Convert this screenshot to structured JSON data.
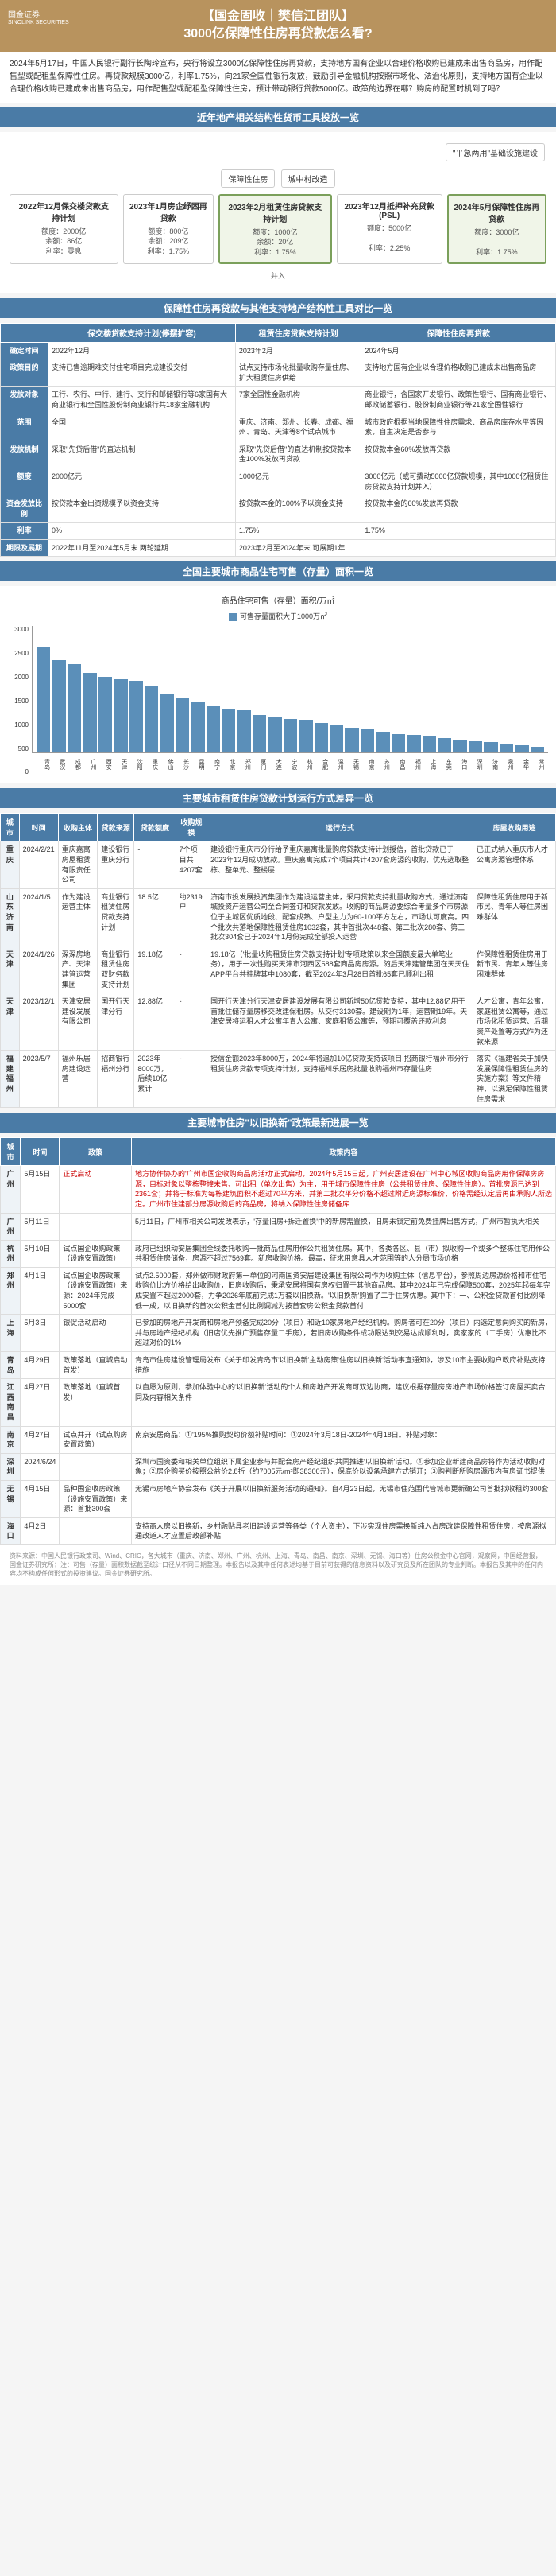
{
  "header": {
    "logo": "国金证券",
    "sublogo": "SINOLINK SECURITIES",
    "title1": "【国金固收｜樊信江团队】",
    "title2": "3000亿保障性住房再贷款怎么看?"
  },
  "intro": "2024年5月17日，中国人民银行副行长陶玲宣布，央行将设立3000亿保障性住房再贷款，支持地方国有企业以合理价格收购已建成未出售商品房，用作配售型或配租型保障性住房。再贷款规模3000亿，利率1.75%，向21家全国性银行发放，鼓励引导金融机构按照市场化、法治化原则，支持地方国有企业以合理价格收购已建成未出售商品房，用作配售型或配租型保障性住房，预计带动银行贷款5000亿。政策的边界在哪？购房的配置时机到了吗？",
  "sec1_title": "近年地产相关结构性货币工具投放一览",
  "diagram": {
    "tags": {
      "t1": "\"平急两用\"基础设施建设",
      "t2": "保障性住房",
      "t3": "城中村改造"
    },
    "nodes": [
      {
        "title": "2022年12月保交楼贷款支持计划",
        "quota": "额度：2000亿",
        "bal": "余额：86亿",
        "rate": "利率：零息"
      },
      {
        "title": "2023年1月房企纾困再贷款",
        "quota": "额度：800亿",
        "bal": "余额：209亿",
        "rate": "利率：1.75%"
      },
      {
        "title": "2023年2月租赁住房贷款支持计划",
        "quota": "额度：1000亿",
        "bal": "余额：20亿",
        "rate": "利率：1.75%",
        "green": true,
        "arrow": "并入"
      },
      {
        "title": "2023年12月抵押补充贷款(PSL)",
        "quota": "额度：5000亿",
        "bal": "",
        "rate": "利率：2.25%"
      },
      {
        "title": "2024年5月保障性住房再贷款",
        "quota": "额度：3000亿",
        "bal": "",
        "rate": "利率：1.75%",
        "green": true
      }
    ]
  },
  "sec2_title": "保障性住房再贷款与其他支持地产结构性工具对比一览",
  "cmp": {
    "cols": [
      "保交楼贷款支持计划(停摆扩容)",
      "租赁住房贷款支持计划",
      "保障性住房再贷款"
    ],
    "rows": [
      {
        "h": "确定时间",
        "c": [
          "2022年12月",
          "2023年2月",
          "2024年5月"
        ]
      },
      {
        "h": "政策目的",
        "c": [
          "支持已售逾期难交付住宅项目完成建设交付",
          "试点支持市场化批量收购存量住房、扩大租赁住房供给",
          "支持地方国有企业以合理价格收购已建成未出售商品房"
        ]
      },
      {
        "h": "发放对象",
        "c": [
          "工行、农行、中行、建行、交行和邮储银行等6家国有大商业银行和全国性股份制商业银行共18家金融机构",
          "7家全国性金融机构",
          "商业银行，含国家开发银行、政策性银行、国有商业银行、邮政储蓄银行、股份制商业银行等21家全国性银行"
        ]
      },
      {
        "h": "范围",
        "c": [
          "全国",
          "重庆、济南、郑州、长春、成都、福州、青岛、天津等8个试点城市",
          "城市政府根据当地保障性住房需求、商品房库存水平等因素，自主决定是否参与"
        ]
      },
      {
        "h": "发放机制",
        "c": [
          "采取\"先贷后借\"的直达机制",
          "采取\"先贷后借\"的直达机制按贷款本金100%发放再贷款",
          "按贷款本金60%发放再贷款"
        ]
      },
      {
        "h": "额度",
        "c": [
          "2000亿元",
          "1000亿元",
          "3000亿元（或可撬动5000亿贷款规模，其中1000亿租赁住房贷款支持计划并入）"
        ]
      },
      {
        "h": "资金发放比例",
        "c": [
          "按贷款本金出资规模予以资金支持",
          "按贷款本金的100%予以资金支持",
          "按贷款本金的60%发放再贷款"
        ]
      },
      {
        "h": "利率",
        "c": [
          "0%",
          "1.75%",
          "1.75%"
        ]
      },
      {
        "h": "期限及展期",
        "c": [
          "2022年11月至2024年5月末 两轮延期",
          "2023年2月至2024年末 可展期1年",
          ""
        ]
      }
    ]
  },
  "sec3_title": "全国主要城市商品住宅可售（存量）面积一览",
  "chart": {
    "title": "商品住宅可售（存量）面积/万㎡",
    "legend": "可售存量面积大于1000万㎡",
    "ymax": 3000,
    "ytickstep": 500,
    "series": [
      {
        "city": "青岛",
        "v": 2500
      },
      {
        "city": "武汉",
        "v": 2200
      },
      {
        "city": "成都",
        "v": 2100
      },
      {
        "city": "广州",
        "v": 1900
      },
      {
        "city": "西安",
        "v": 1800
      },
      {
        "city": "天津",
        "v": 1750
      },
      {
        "city": "沈阳",
        "v": 1700
      },
      {
        "city": "重庆",
        "v": 1600
      },
      {
        "city": "佛山",
        "v": 1400
      },
      {
        "city": "长沙",
        "v": 1300
      },
      {
        "city": "昆明",
        "v": 1200
      },
      {
        "city": "南宁",
        "v": 1100
      },
      {
        "city": "北京",
        "v": 1050
      },
      {
        "city": "郑州",
        "v": 1000
      },
      {
        "city": "厦门",
        "v": 900
      },
      {
        "city": "大连",
        "v": 850
      },
      {
        "city": "宁波",
        "v": 800
      },
      {
        "city": "杭州",
        "v": 780
      },
      {
        "city": "合肥",
        "v": 700
      },
      {
        "city": "温州",
        "v": 650
      },
      {
        "city": "无锡",
        "v": 600
      },
      {
        "city": "南京",
        "v": 550
      },
      {
        "city": "苏州",
        "v": 500
      },
      {
        "city": "南昌",
        "v": 450
      },
      {
        "city": "福州",
        "v": 420
      },
      {
        "city": "上海",
        "v": 400
      },
      {
        "city": "东莞",
        "v": 350
      },
      {
        "city": "海口",
        "v": 300
      },
      {
        "city": "深圳",
        "v": 280
      },
      {
        "city": "济南",
        "v": 250
      },
      {
        "city": "泉州",
        "v": 200
      },
      {
        "city": "金华",
        "v": 180
      },
      {
        "city": "常州",
        "v": 150
      }
    ]
  },
  "sec4_title": "主要城市租赁住房贷款计划运行方式差异一览",
  "t4": {
    "cols": [
      "城市",
      "时间",
      "收购主体",
      "贷款来源",
      "贷款额度",
      "收购规模",
      "运行方式",
      "房屋收购用途"
    ],
    "rows": [
      {
        "city": "重庆",
        "date": "2024/2/21",
        "buyer": "重庆嘉寓房屋租赁有限责任公司",
        "loan": "建设银行重庆分行",
        "amt": "-",
        "scale": "7个项目共4207套",
        "run": "建设银行重庆市分行给予重庆嘉寓批量购房贷款支持计划授信，首批贷款已于2023年12月成功放款。重庆嘉寓完成7个项目共计4207套房源的收购，优先选取整栋、整单元、整楼层",
        "use": "已正式纳入重庆市人才公寓房源管理体系"
      },
      {
        "city": "山东济南",
        "date": "2024/1/5",
        "buyer": "作为建设运营主体",
        "loan": "商业银行租赁住房贷款支持计划",
        "amt": "18.5亿",
        "scale": "约2319户",
        "run": "济南市投发展投资集团作为建设运营主体，采用贷款支持批量收购方式，通过济南城投资产运营公司至合同签订和贷款发放。收购的商品房源要综合考量多个市房源位于主城区优质地段、配套成熟、户型主力为60-100平方左右，市场认可度高。四个批次共落地保障性租赁住房1032套，其中首批次448套、第二批次280套、第三批次304套已于2024年1月份完成全部投入运营",
        "use": "保障性租赁住房用于新市民、青年人等住房困难群体"
      },
      {
        "city": "天津",
        "date": "2024/1/26",
        "buyer": "深深房地产、天津建管运营集团",
        "loan": "商业银行租赁住房双财务款支持计划",
        "amt": "19.18亿",
        "scale": "-",
        "run": "19.18亿（'批量收购租赁住房贷款支持计划'专项政策以来全国额度最大单笔业务），用于一次性购买天津市河西区588套商品房房源。随后天津建管集团在天天住APP平台共挂牌其中1080套，截至2024年3月28日首批65套已顺利出租",
        "use": "作保障性租赁住房用于新市民、青年人等住房困难群体"
      },
      {
        "city": "天津",
        "date": "2023/12/1",
        "buyer": "天津安居建设发展有限公司",
        "loan": "国开行天津分行",
        "amt": "12.88亿",
        "scale": "-",
        "run": "国开行天津分行天津安居建设发展有限公司新增50亿贷款支持，其中12.88亿用于首批住储存量房移交改建保租房。从交付3130套。建设期为1年，运营期19年。天津安居将运租人才公寓年青人公寓、家庭租赁公寓等，预期可覆盖还款利息",
        "use": "人才公寓，青年公寓，家庭租赁公寓等，通过市场化租赁运营、后期资产处置等方式作为还款来源"
      },
      {
        "city": "福建福州",
        "date": "2023/5/7",
        "buyer": "福州乐居房建设运营",
        "loan": "招商银行福州分行",
        "amt": "2023年8000万，后续10亿累计",
        "scale": "-",
        "run": "授信金额2023年8000万，2024年将追加10亿贷款支持该项目,招商银行福州市分行租赁住房贷款专项支持计划，支持福州乐居房批量收购福州市存量住房",
        "use": "落实《福建省关于加快发展保障性租赁住房的实施方案》等文件精神，以满足保障性租赁住房需求"
      }
    ]
  },
  "sec5_title": "主要城市住房\"以旧换新\"政策最新进展一览",
  "t5": {
    "cols": [
      "城市",
      "时间",
      "政策",
      "政策内容"
    ],
    "rows": [
      {
        "city": "广州",
        "date": "5月15日",
        "plc": "正式启动",
        "txt": "地方协作协办的'广州市国企收购商品房活动'正式启动，2024年5月15日起，广州安居建设在广州中心城区收购商品房用作保障房房源，目标对象以整栋整幢未售、可出租（单次出售）为主，用于城市保障性住房（公共租赁住房、保障性住房）。首批房源已达到2361套；并将于标准为每栋建筑面积不超过70平方米，并第二批次平分价格不超过附近房源标准价，价格需经认定后再由承购人所选定。广州市住建部分房源收购后的商品房，将纳入保障性住房储备库",
        "hl": "red"
      },
      {
        "city": "广州",
        "date": "5月11日",
        "plc": "",
        "txt": "5月11日，广州市相关公司发改表示，'存量旧房+拆迁置换'中的新房需置换，旧房未锁定前免费挂牌出售方式，广州市暂执大相关"
      },
      {
        "city": "杭州",
        "date": "5月10日",
        "plc": "试点国企收购政策（设施安置政策）",
        "txt": "政府已组织动安居集团全线委托收购一批商品住房用作公共租赁住房。其中，各类各区、县（市）拟收购一个或多个整栋住宅用作公共租赁住房储备，房源不超过7569套。新房收购价格。最高，征求用意具人才范围等的人分局市场价格"
      },
      {
        "city": "郑州",
        "date": "4月1日",
        "plc": "试点国企收房政策（设施安置政策）来源：2024年完成5000套",
        "txt": "试点2.5000套，郑州做市财政府第一单位的河南国资安居建设集团有限公司作为收购主体（信息平台），参照周边房源价格和市住宅收购价比方价格给出收购价，旧房收购后，秉承安居将国有房权归置于其他商品房。其中2024年已完成保障500套，2025年起每年完成安置不超过2000套，力争2026年底前完成1万套以旧换新。'以旧换新'购置了二手住房优惠。其中下：一、公积金贷款首付比例降低一成，以旧换新的首次公积金首付比例调减为按首套房公积金贷款首付"
      },
      {
        "city": "上海",
        "date": "5月3日",
        "plc": "银促活动启动",
        "txt": "已参加的房地产开发商和房地产预备完成20分（项目）和近10家房地产经纪机构。购房者可在20分（项目）内选定意向购买的新房，并与房地产经纪机构（旧店优先推广预售存量二手房），若旧房收购条件成功限达到交易达成顺利时，卖家家的（二手房）优惠比不超过对价的1%"
      },
      {
        "city": "青岛",
        "date": "4月29日",
        "plc": "政策落地（直城启动首发）",
        "txt": "青岛市住房建设管理局发布《关于印发青岛市'以旧换新'主动房策'住房以旧换新'活动事宜通知》，涉及10市主要收购户政府补贴支持措施"
      },
      {
        "city": "江西南昌",
        "date": "4月27日",
        "plc": "政策落地（直城首发）",
        "txt": "以自愿为原则，参加体验中心的'以旧换新'活动的个人和房地产开发商可双边协商，建议根据存量房房地产市场价格签订房屋买卖合同及内容相关条件"
      },
      {
        "city": "南京",
        "date": "4月27日",
        "plc": "试点并开（试点购房安置政策）",
        "txt": "南京安居商品：①'195%推购契约价额补贴时间：①2024年3月18日-2024年4月18日。补贴对象："
      },
      {
        "city": "深圳",
        "date": "2024/6/24",
        "plc": "",
        "txt": "深圳市国资委和相关单位组织下属企业参与并配合房产经纪组织共同推进'以旧换新'活动。①参加企业新建商品房将作为活动收购对象；②房企购买价按照公益价2.8折（约7005元/m²即38300元），保底价以设备承建方式销开；③购判断所购房源市内有房证书提供"
      },
      {
        "city": "无锡",
        "date": "4月15日",
        "plc": "品种国企收房政策（设施安置政策）来源：首批300套",
        "txt": "无锡市房地产协会发布《关于开展以旧换新服务活动的通知》。自4月23日起，无锡市住范围代管城市更新确公司首批拟收租约300套"
      },
      {
        "city": "海口",
        "date": "4月2日",
        "plc": "",
        "txt": "支持商人房以旧换新，乡村融贴具老旧建设运营等各类（个人资主），下涉实现住房需换新纯入占房改建保障性租赁住房，按房源拟通改道人才应置后政部补贴"
      }
    ]
  },
  "footer": "资料来源：中国人民银行政策司、Wind、CRIC，各大城市（重庆、济南、郑州、广州、杭州、上海、青岛、南昌、南京、深圳、无锡、海口等）住房公积金中心官网，观察网，中国经营报，国金证券研究所；注：可售（存量）面积数据截至统计口径从不同日期整理。本报告以及其中任何表述均基于目前可获得的信息资料以及研究员及所在团队的专业判断。本报告及其中的任何内容均不构成任何形式的投资建议。国金证券研究所。"
}
